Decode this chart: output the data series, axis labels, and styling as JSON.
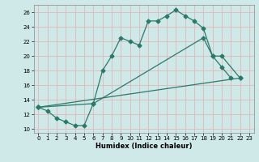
{
  "xlabel": "Humidex (Indice chaleur)",
  "xlim": [
    -0.5,
    23.5
  ],
  "ylim": [
    9.5,
    27
  ],
  "yticks": [
    10,
    12,
    14,
    16,
    18,
    20,
    22,
    24,
    26
  ],
  "xticks": [
    0,
    1,
    2,
    3,
    4,
    5,
    6,
    7,
    8,
    9,
    10,
    11,
    12,
    13,
    14,
    15,
    16,
    17,
    18,
    19,
    20,
    21,
    22,
    23
  ],
  "bg_color": "#cfe8e8",
  "grid_color": "#e0b8b8",
  "line_color": "#2a7a6a",
  "line1_x": [
    0,
    1,
    2,
    3,
    4,
    5,
    6,
    7,
    8,
    9,
    10,
    11,
    12,
    13,
    14,
    15,
    16,
    17,
    18,
    19,
    20,
    21
  ],
  "line1_y": [
    13,
    12.5,
    11.5,
    11,
    10.5,
    10.5,
    13.5,
    18,
    20,
    22.5,
    22,
    21.5,
    24.8,
    24.8,
    25.5,
    26.3,
    25.5,
    24.8,
    23.8,
    20,
    18.5,
    17
  ],
  "line2_x": [
    0,
    6,
    18,
    19,
    20,
    22
  ],
  "line2_y": [
    13,
    13.5,
    22.5,
    20,
    20,
    17
  ],
  "line3_x": [
    0,
    22
  ],
  "line3_y": [
    13,
    17
  ]
}
